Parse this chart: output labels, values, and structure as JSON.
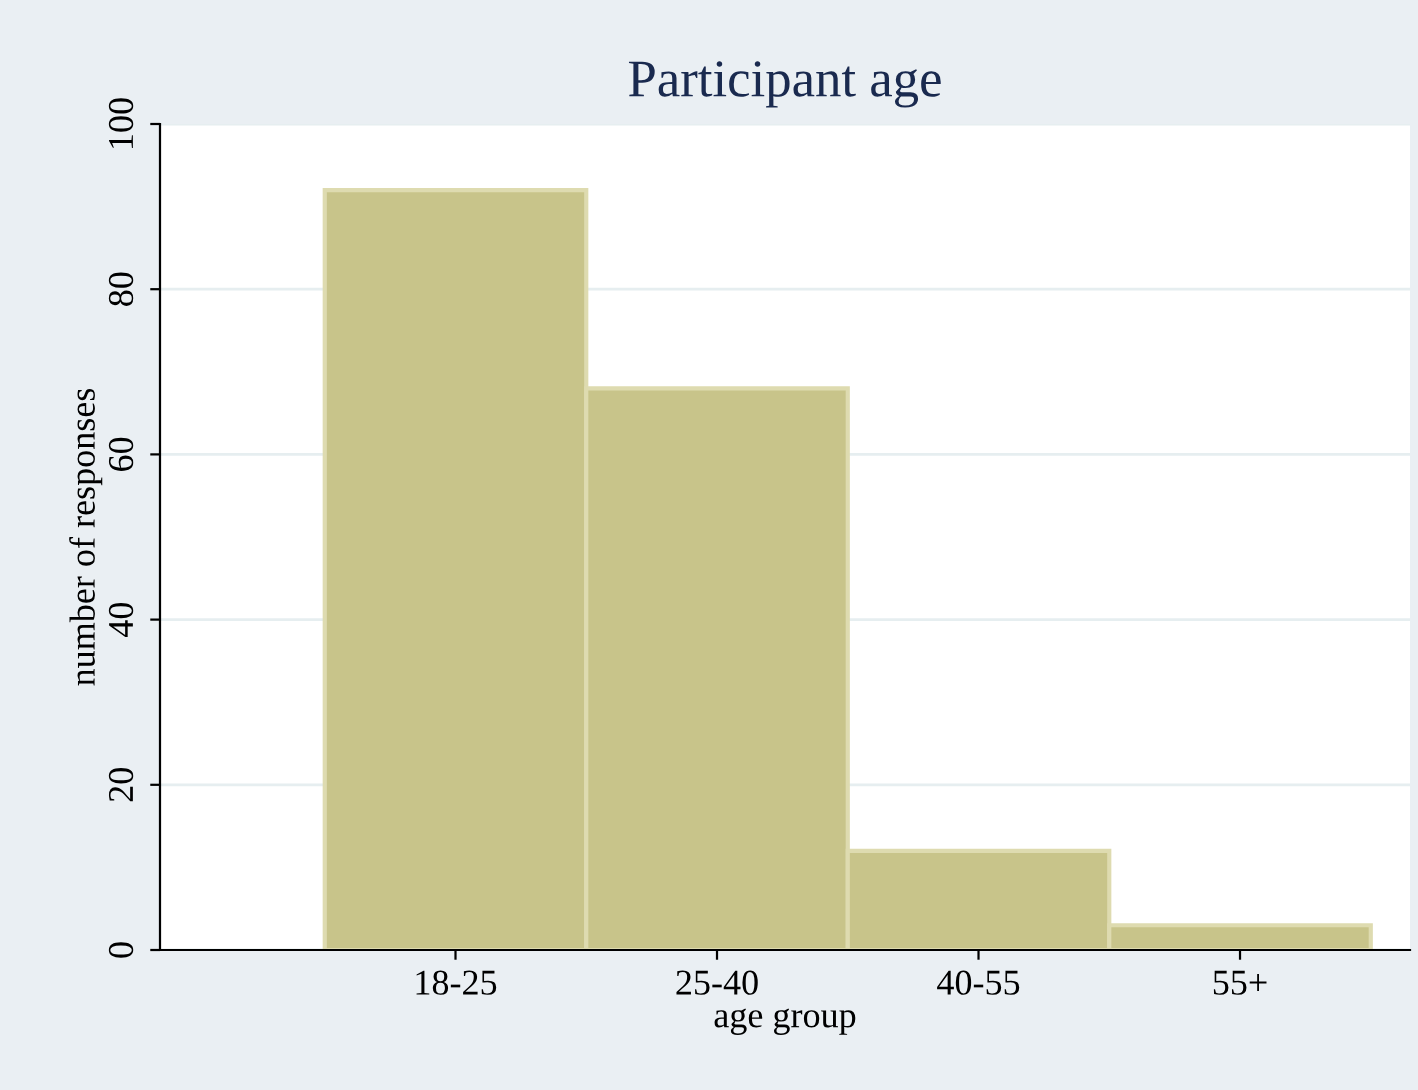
{
  "chart_data": {
    "type": "bar",
    "title": "Participant age",
    "xlabel": "age group",
    "ylabel": "number of responses",
    "categories": [
      "18-25",
      "25-40",
      "40-55",
      "55+"
    ],
    "values": [
      92,
      68,
      12,
      3
    ],
    "color": "#c8c48a",
    "ylim": [
      0,
      100
    ],
    "yticks": [
      0,
      20,
      40,
      60,
      80,
      100
    ],
    "grid": "y"
  }
}
